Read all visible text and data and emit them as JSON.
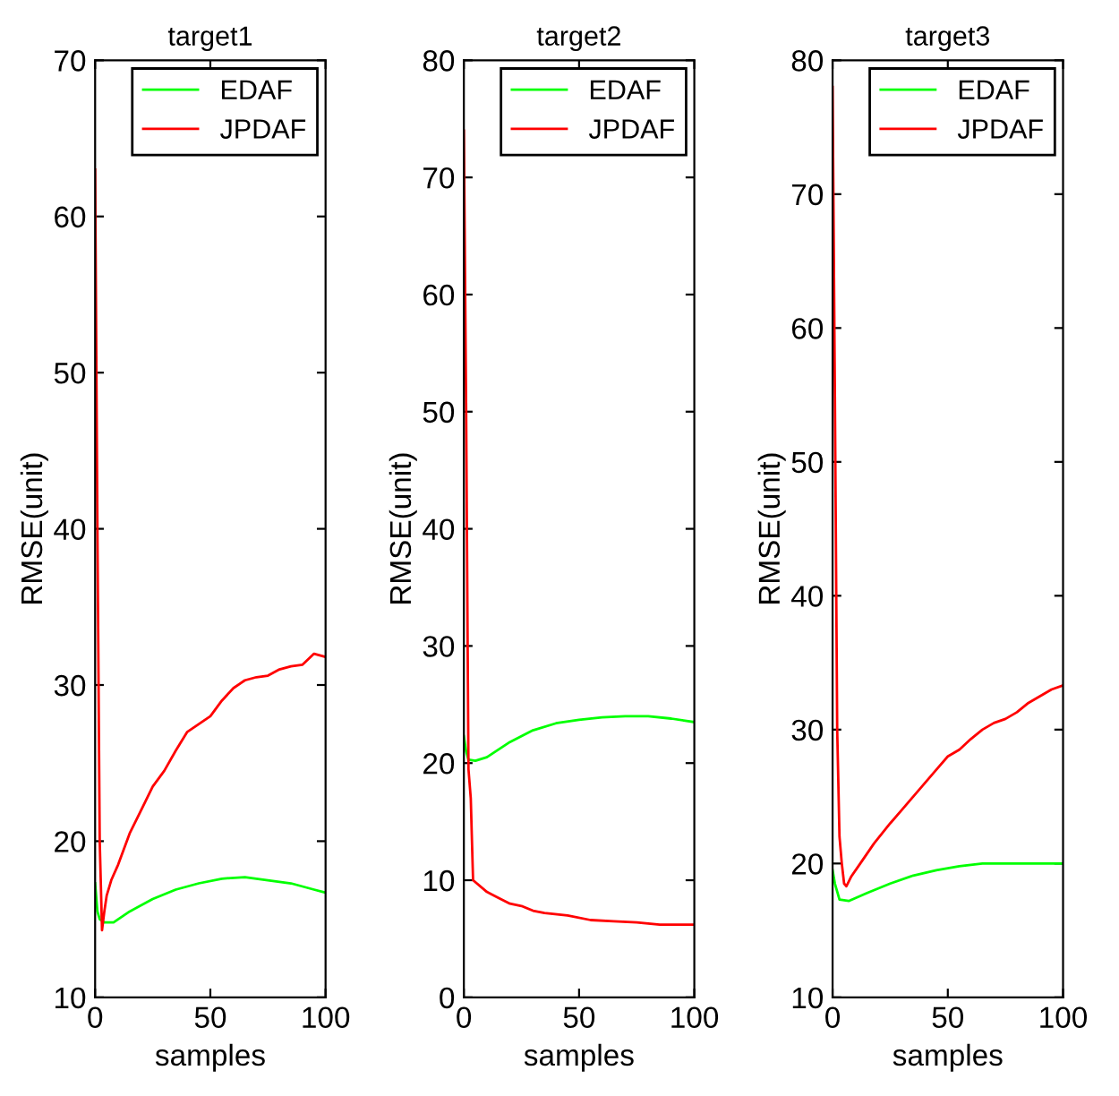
{
  "chart_data": [
    {
      "type": "line",
      "title": "target1",
      "xlabel": "samples",
      "ylabel": "RMSE(unit)",
      "xlim": [
        0,
        100
      ],
      "xticks": [
        0,
        50,
        100
      ],
      "ylim": [
        10,
        70
      ],
      "yticks": [
        10,
        20,
        30,
        40,
        50,
        60,
        70
      ],
      "legend": "top right",
      "grid": false,
      "series": [
        {
          "name": "EDAF",
          "color": "#00ff00",
          "x": [
            0,
            1,
            2,
            4,
            8,
            15,
            25,
            35,
            45,
            55,
            65,
            75,
            85,
            95,
            100
          ],
          "values": [
            17.3,
            15.5,
            15,
            14.8,
            14.8,
            15.5,
            16.3,
            16.9,
            17.3,
            17.6,
            17.7,
            17.5,
            17.3,
            16.9,
            16.7
          ]
        },
        {
          "name": "JPDAF",
          "color": "#ff0000",
          "x": [
            0,
            1,
            2,
            3,
            4,
            5,
            7,
            10,
            15,
            20,
            25,
            30,
            35,
            40,
            45,
            50,
            55,
            60,
            65,
            70,
            75,
            80,
            85,
            90,
            95,
            100
          ],
          "values": [
            63,
            40,
            20,
            14.3,
            15.5,
            16.5,
            17.5,
            18.5,
            20.5,
            22,
            23.5,
            24.5,
            25.8,
            27,
            27.5,
            28,
            29,
            29.8,
            30.3,
            30.5,
            30.6,
            31,
            31.2,
            31.3,
            32,
            31.8
          ]
        }
      ]
    },
    {
      "type": "line",
      "title": "target2",
      "xlabel": "samples",
      "ylabel": "RMSE(unit)",
      "xlim": [
        0,
        100
      ],
      "xticks": [
        0,
        50,
        100
      ],
      "ylim": [
        0,
        80
      ],
      "yticks": [
        0,
        10,
        20,
        30,
        40,
        50,
        60,
        70,
        80
      ],
      "legend": "top right",
      "grid": false,
      "series": [
        {
          "name": "EDAF",
          "color": "#00ff00",
          "x": [
            0,
            1,
            2,
            5,
            10,
            20,
            30,
            40,
            50,
            60,
            70,
            80,
            90,
            100
          ],
          "values": [
            22.3,
            21,
            20.3,
            20.2,
            20.5,
            21.8,
            22.8,
            23.4,
            23.7,
            23.9,
            24,
            24,
            23.8,
            23.5
          ]
        },
        {
          "name": "JPDAF",
          "color": "#ff0000",
          "x": [
            0,
            1,
            2,
            3,
            4,
            10,
            12,
            15,
            20,
            25,
            30,
            35,
            45,
            55,
            65,
            75,
            85,
            95,
            100
          ],
          "values": [
            74,
            50,
            19.5,
            17,
            10,
            9,
            8.8,
            8.5,
            8,
            7.8,
            7.4,
            7.2,
            7,
            6.6,
            6.5,
            6.4,
            6.2,
            6.2,
            6.2
          ]
        }
      ]
    },
    {
      "type": "line",
      "title": "target3",
      "xlabel": "samples",
      "ylabel": "RMSE(unit)",
      "xlim": [
        0,
        100
      ],
      "xticks": [
        0,
        50,
        100
      ],
      "ylim": [
        10,
        80
      ],
      "yticks": [
        10,
        20,
        30,
        40,
        50,
        60,
        70,
        80
      ],
      "legend": "top right",
      "grid": false,
      "series": [
        {
          "name": "EDAF",
          "color": "#00ff00",
          "x": [
            0,
            1,
            3,
            7,
            15,
            25,
            35,
            45,
            55,
            65,
            100
          ],
          "values": [
            19.5,
            18.5,
            17.3,
            17.2,
            17.8,
            18.5,
            19.1,
            19.5,
            19.8,
            20,
            20
          ]
        },
        {
          "name": "JPDAF",
          "color": "#ff0000",
          "x": [
            0,
            1,
            2,
            3,
            4,
            5,
            6,
            8,
            12,
            18,
            25,
            30,
            35,
            40,
            45,
            50,
            55,
            60,
            65,
            70,
            75,
            80,
            85,
            90,
            95,
            100
          ],
          "values": [
            78,
            55,
            30,
            22,
            20,
            18.5,
            18.3,
            19,
            20,
            21.5,
            23,
            24,
            25,
            26,
            27,
            28,
            28.5,
            29.3,
            30,
            30.5,
            30.8,
            31.3,
            32,
            32.5,
            33,
            33.3
          ]
        }
      ]
    }
  ]
}
